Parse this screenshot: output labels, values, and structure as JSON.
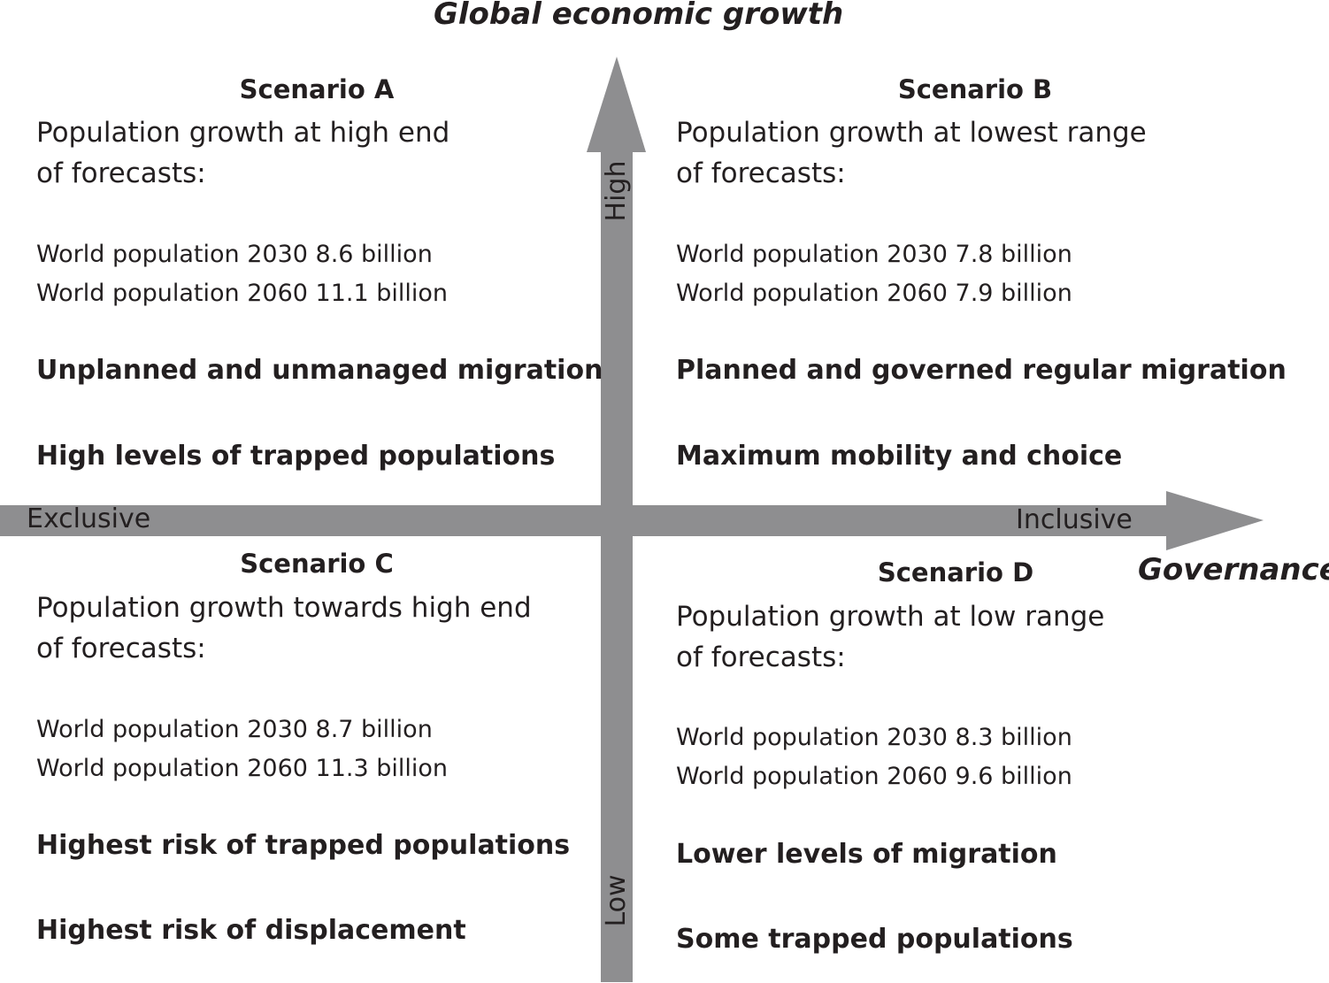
{
  "axes": {
    "vertical": {
      "title": "Global economic growth",
      "high_label": "High",
      "low_label": "Low"
    },
    "horizontal": {
      "title": "Governance",
      "left_label": "Exclusive",
      "right_label": "Inclusive"
    },
    "arrow_color": "#8e8e90"
  },
  "scenarios": [
    {
      "title": "Scenario A",
      "desc_line1": "Population growth at high end",
      "desc_line2": "of forecasts:",
      "pop_2030": "World population 2030 8.6 billion",
      "pop_2060": "World population 2060 11.1 billion",
      "point1": "Unplanned and unmanaged migration",
      "point2": "High levels of trapped populations"
    },
    {
      "title": "Scenario B",
      "desc_line1": "Population growth at lowest range",
      "desc_line2": "of forecasts:",
      "pop_2030": "World population 2030 7.8 billion",
      "pop_2060": "World population 2060 7.9 billion",
      "point1": "Planned and governed regular migration",
      "point2": "Maximum mobility and choice"
    },
    {
      "title": "Scenario C",
      "desc_line1": "Population growth towards high end",
      "desc_line2": "of forecasts:",
      "pop_2030": "World population 2030 8.7 billion",
      "pop_2060": "World population 2060 11.3 billion",
      "point1": "Highest risk of trapped populations",
      "point2": "Highest risk of displacement"
    },
    {
      "title": "Scenario D",
      "desc_line1": "Population growth at low range",
      "desc_line2": "of forecasts:",
      "pop_2030": "World population 2030 8.3 billion",
      "pop_2060": "World population 2060 9.6 billion",
      "point1": "Lower levels of migration",
      "point2": "Some trapped populations"
    }
  ]
}
